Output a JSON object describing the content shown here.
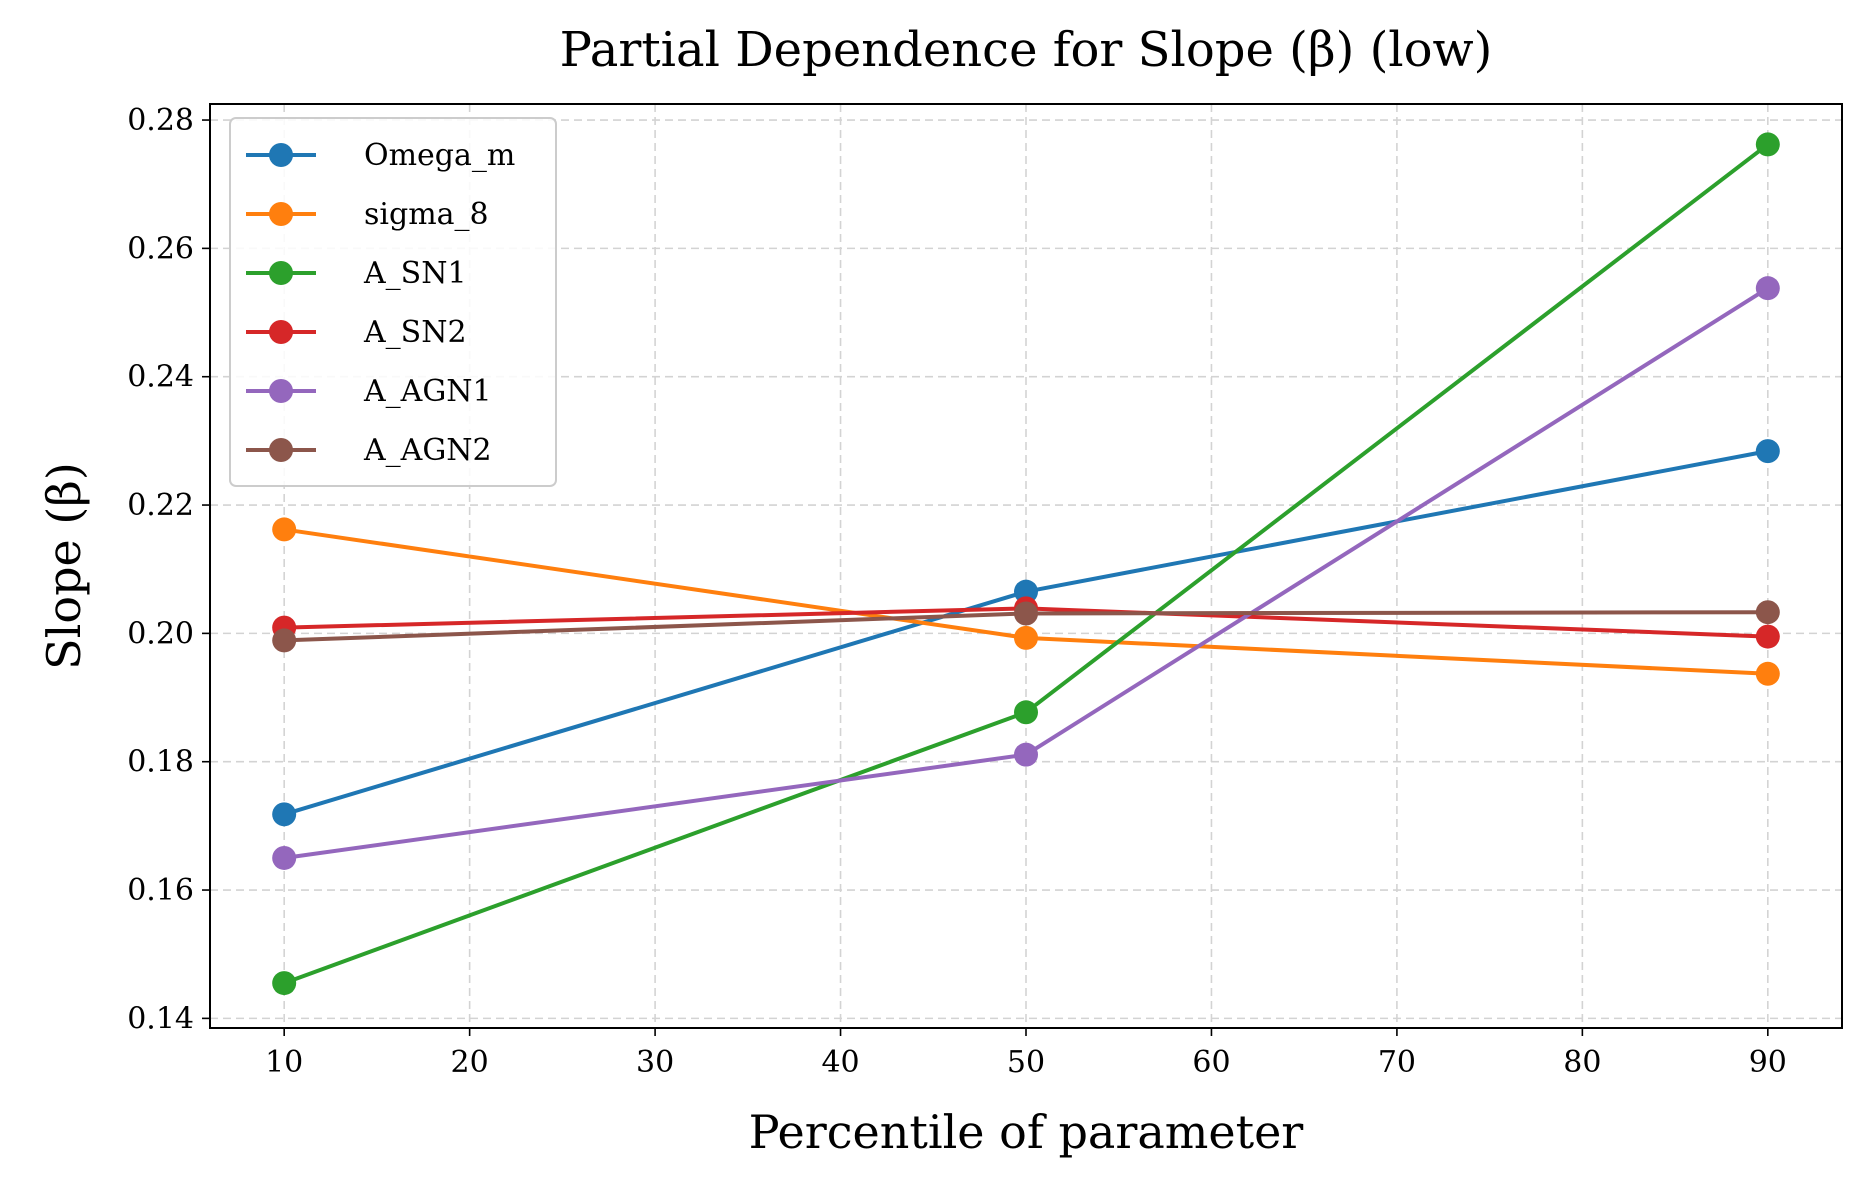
{
  "chart_data": {
    "type": "line",
    "title": "Partial Dependence for Slope (β) (low)",
    "xlabel": "Percentile of parameter",
    "ylabel": "Slope (β)",
    "x": [
      10,
      50,
      90
    ],
    "xlim": [
      6,
      94
    ],
    "ylim": [
      0.1385,
      0.2825
    ],
    "xticks": [
      10,
      20,
      30,
      40,
      50,
      60,
      70,
      80,
      90
    ],
    "yticks": [
      0.14,
      0.16,
      0.18,
      0.2,
      0.22,
      0.24,
      0.26,
      0.28
    ],
    "ytick_labels": [
      "0.14",
      "0.16",
      "0.18",
      "0.20",
      "0.22",
      "0.24",
      "0.26",
      "0.28"
    ],
    "grid": true,
    "legend_position": "top-left",
    "series": [
      {
        "name": "Omega_m",
        "color": "#1f77b4",
        "values": [
          0.1718,
          0.2065,
          0.2284
        ]
      },
      {
        "name": "sigma_8",
        "color": "#ff7f0e",
        "values": [
          0.2162,
          0.1993,
          0.1937
        ]
      },
      {
        "name": "A_SN1",
        "color": "#2ca02c",
        "values": [
          0.1455,
          0.1877,
          0.2762
        ]
      },
      {
        "name": "A_SN2",
        "color": "#d62728",
        "values": [
          0.2009,
          0.2039,
          0.1995
        ]
      },
      {
        "name": "A_AGN1",
        "color": "#9467bd",
        "values": [
          0.165,
          0.1811,
          0.2538
        ]
      },
      {
        "name": "A_AGN2",
        "color": "#8c564b",
        "values": [
          0.1989,
          0.2031,
          0.2033
        ]
      }
    ]
  }
}
